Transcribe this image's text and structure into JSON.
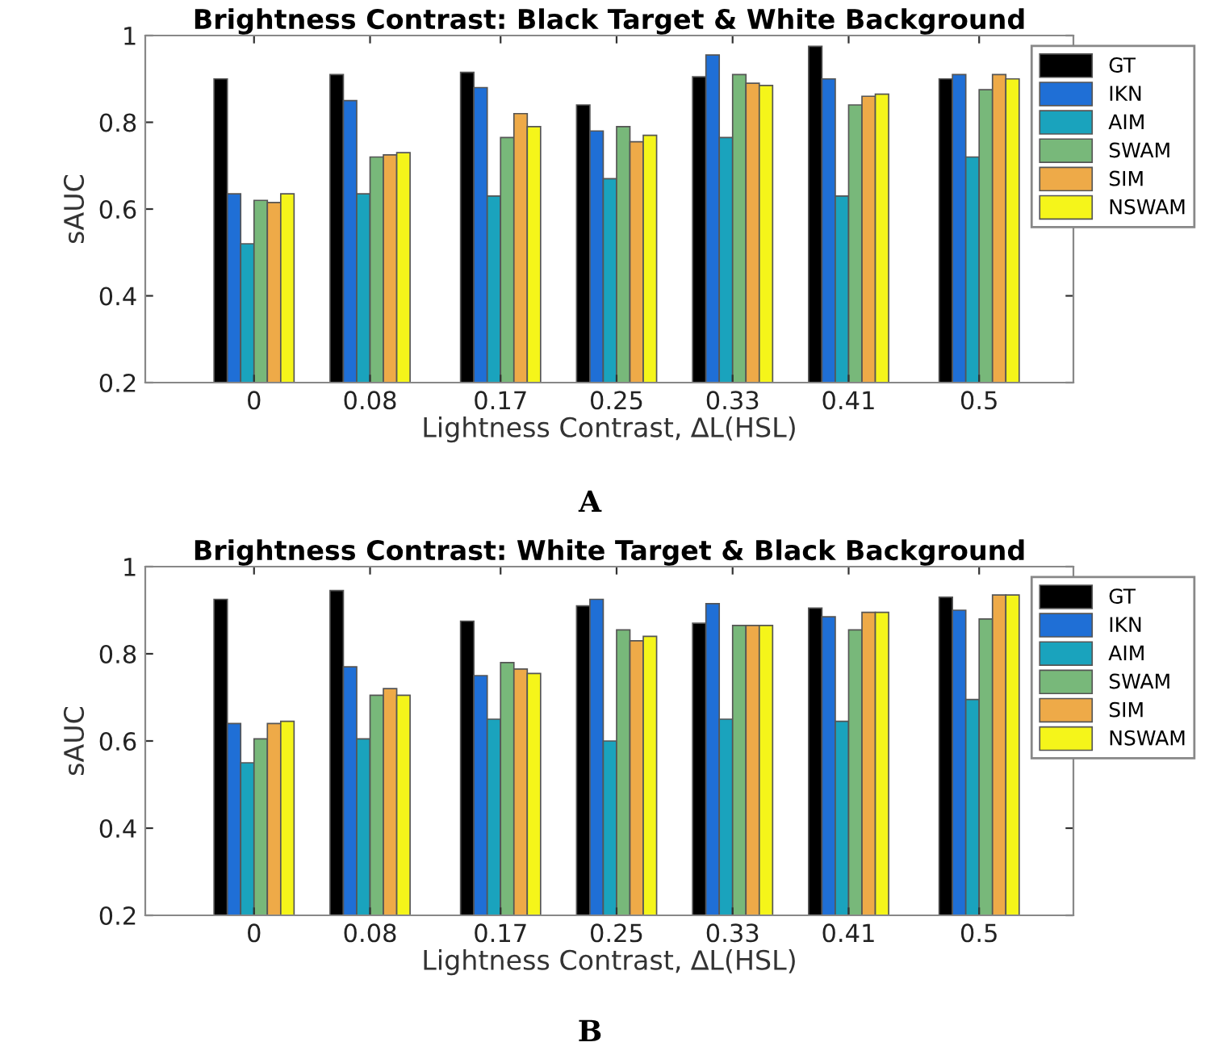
{
  "chart_data": [
    {
      "type": "bar",
      "title": "Brightness Contrast: Black Target & White Background",
      "xlabel": "Lightness Contrast, ∆L(HSL)",
      "ylabel": "sAUC",
      "annotations": [
        "A"
      ],
      "x": [
        0,
        0.08,
        0.17,
        0.25,
        0.33,
        0.41,
        0.5
      ],
      "xlim": [
        -0.075,
        0.565
      ],
      "xticks": [
        0,
        0.08,
        0.17,
        0.25,
        0.33,
        0.41,
        0.5
      ],
      "ylim": [
        0.2,
        1
      ],
      "yticks": [
        0.2,
        0.4,
        0.6,
        0.8,
        1
      ],
      "grid": false,
      "legend": "top right",
      "series": [
        {
          "name": "GT",
          "color": "#000000",
          "values": [
            0.9,
            0.91,
            0.915,
            0.84,
            0.905,
            0.975,
            0.9
          ]
        },
        {
          "name": "IKN",
          "color": "#1f6fd6",
          "values": [
            0.635,
            0.85,
            0.88,
            0.78,
            0.955,
            0.9,
            0.91
          ]
        },
        {
          "name": "AIM",
          "color": "#1aa3bd",
          "values": [
            0.52,
            0.635,
            0.63,
            0.67,
            0.765,
            0.63,
            0.72
          ]
        },
        {
          "name": "SWAM",
          "color": "#78b87a",
          "values": [
            0.62,
            0.72,
            0.765,
            0.79,
            0.91,
            0.84,
            0.875
          ]
        },
        {
          "name": "SIM",
          "color": "#eeaa48",
          "values": [
            0.615,
            0.725,
            0.82,
            0.755,
            0.89,
            0.86,
            0.91
          ]
        },
        {
          "name": "NSWAM",
          "color": "#f5f51a",
          "values": [
            0.635,
            0.73,
            0.79,
            0.77,
            0.885,
            0.865,
            0.9
          ]
        }
      ]
    },
    {
      "type": "bar",
      "title": "Brightness Contrast: White Target & Black Background",
      "xlabel": "Lightness Contrast, ∆L(HSL)",
      "ylabel": "sAUC",
      "annotations": [
        "B"
      ],
      "x": [
        0,
        0.08,
        0.17,
        0.25,
        0.33,
        0.41,
        0.5
      ],
      "xlim": [
        -0.075,
        0.565
      ],
      "xticks": [
        0,
        0.08,
        0.17,
        0.25,
        0.33,
        0.41,
        0.5
      ],
      "ylim": [
        0.2,
        1
      ],
      "yticks": [
        0.2,
        0.4,
        0.6,
        0.8,
        1
      ],
      "grid": false,
      "legend": "top right",
      "series": [
        {
          "name": "GT",
          "color": "#000000",
          "values": [
            0.925,
            0.945,
            0.875,
            0.91,
            0.87,
            0.905,
            0.93
          ]
        },
        {
          "name": "IKN",
          "color": "#1f6fd6",
          "values": [
            0.64,
            0.77,
            0.75,
            0.925,
            0.915,
            0.885,
            0.9
          ]
        },
        {
          "name": "AIM",
          "color": "#1aa3bd",
          "values": [
            0.55,
            0.605,
            0.65,
            0.6,
            0.65,
            0.645,
            0.695
          ]
        },
        {
          "name": "SWAM",
          "color": "#78b87a",
          "values": [
            0.605,
            0.705,
            0.78,
            0.855,
            0.865,
            0.855,
            0.88
          ]
        },
        {
          "name": "SIM",
          "color": "#eeaa48",
          "values": [
            0.64,
            0.72,
            0.765,
            0.83,
            0.865,
            0.895,
            0.935
          ]
        },
        {
          "name": "NSWAM",
          "color": "#f5f51a",
          "values": [
            0.645,
            0.705,
            0.755,
            0.84,
            0.865,
            0.895,
            0.935
          ]
        }
      ]
    }
  ]
}
